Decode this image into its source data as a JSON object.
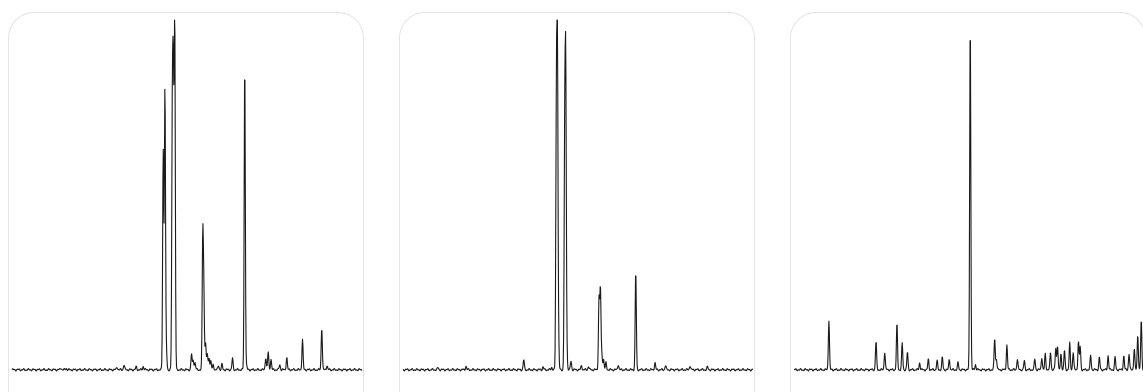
{
  "chart_data": [
    {
      "type": "line",
      "title": "",
      "xlabel": "",
      "ylabel": "",
      "grid": false,
      "legend": "none",
      "line_color": "#1a1a1a",
      "frame_color": "#e3e3e3",
      "xlim": [
        0,
        1
      ],
      "ylim": [
        0,
        1
      ],
      "baseline": 0.012,
      "peaks": [
        [
          0.14,
          0.005
        ],
        [
          0.155,
          0.004
        ],
        [
          0.3,
          0.008
        ],
        [
          0.32,
          0.014
        ],
        [
          0.355,
          0.008
        ],
        [
          0.375,
          0.01
        ],
        [
          0.432,
          0.62
        ],
        [
          0.437,
          0.8
        ],
        [
          0.441,
          0.055
        ],
        [
          0.458,
          0.68
        ],
        [
          0.461,
          0.76
        ],
        [
          0.465,
          0.99
        ],
        [
          0.513,
          0.045
        ],
        [
          0.518,
          0.028
        ],
        [
          0.523,
          0.02
        ],
        [
          0.545,
          0.37
        ],
        [
          0.548,
          0.21
        ],
        [
          0.553,
          0.075
        ],
        [
          0.558,
          0.045
        ],
        [
          0.563,
          0.035
        ],
        [
          0.568,
          0.025
        ],
        [
          0.575,
          0.015
        ],
        [
          0.59,
          0.012
        ],
        [
          0.6,
          0.015
        ],
        [
          0.63,
          0.032
        ],
        [
          0.665,
          0.87
        ],
        [
          0.67,
          0.01
        ],
        [
          0.725,
          0.035
        ],
        [
          0.732,
          0.05
        ],
        [
          0.74,
          0.03
        ],
        [
          0.765,
          0.015
        ],
        [
          0.785,
          0.035
        ],
        [
          0.83,
          0.085
        ],
        [
          0.885,
          0.12
        ],
        [
          0.9,
          0.012
        ]
      ]
    },
    {
      "type": "line",
      "title": "",
      "xlabel": "",
      "ylabel": "",
      "grid": false,
      "legend": "none",
      "line_color": "#1a1a1a",
      "frame_color": "#e3e3e3",
      "xlim": [
        0,
        1
      ],
      "ylim": [
        0,
        1
      ],
      "baseline": 0.012,
      "peaks": [
        [
          0.1,
          0.006
        ],
        [
          0.18,
          0.01
        ],
        [
          0.345,
          0.028
        ],
        [
          0.4,
          0.008
        ],
        [
          0.425,
          0.007
        ],
        [
          0.438,
          0.64
        ],
        [
          0.441,
          0.95
        ],
        [
          0.444,
          0.1
        ],
        [
          0.462,
          0.63
        ],
        [
          0.465,
          0.8
        ],
        [
          0.468,
          0.05
        ],
        [
          0.48,
          0.025
        ],
        [
          0.51,
          0.012
        ],
        [
          0.53,
          0.01
        ],
        [
          0.56,
          0.2
        ],
        [
          0.564,
          0.23
        ],
        [
          0.568,
          0.045
        ],
        [
          0.573,
          0.03
        ],
        [
          0.58,
          0.02
        ],
        [
          0.615,
          0.015
        ],
        [
          0.665,
          0.28
        ],
        [
          0.72,
          0.02
        ],
        [
          0.75,
          0.012
        ],
        [
          0.82,
          0.012
        ],
        [
          0.87,
          0.008
        ]
      ]
    },
    {
      "type": "line",
      "title": "",
      "xlabel": "",
      "ylabel": "",
      "grid": false,
      "legend": "none",
      "line_color": "#1a1a1a",
      "frame_color": "#e3e3e3",
      "xlim": [
        0,
        1
      ],
      "ylim": [
        0,
        1
      ],
      "baseline": 0.012,
      "peaks": [
        [
          0.1,
          0.14
        ],
        [
          0.235,
          0.08
        ],
        [
          0.26,
          0.05
        ],
        [
          0.295,
          0.13
        ],
        [
          0.31,
          0.075
        ],
        [
          0.325,
          0.05
        ],
        [
          0.36,
          0.02
        ],
        [
          0.385,
          0.03
        ],
        [
          0.41,
          0.025
        ],
        [
          0.425,
          0.035
        ],
        [
          0.445,
          0.03
        ],
        [
          0.47,
          0.02
        ],
        [
          0.505,
          0.99
        ],
        [
          0.52,
          0.015
        ],
        [
          0.575,
          0.09
        ],
        [
          0.58,
          0.03
        ],
        [
          0.61,
          0.07
        ],
        [
          0.64,
          0.03
        ],
        [
          0.66,
          0.025
        ],
        [
          0.69,
          0.03
        ],
        [
          0.71,
          0.035
        ],
        [
          0.72,
          0.045
        ],
        [
          0.735,
          0.05
        ],
        [
          0.75,
          0.06
        ],
        [
          0.755,
          0.07
        ],
        [
          0.765,
          0.045
        ],
        [
          0.775,
          0.055
        ],
        [
          0.79,
          0.075
        ],
        [
          0.8,
          0.05
        ],
        [
          0.815,
          0.08
        ],
        [
          0.82,
          0.065
        ],
        [
          0.85,
          0.04
        ],
        [
          0.875,
          0.035
        ],
        [
          0.9,
          0.04
        ],
        [
          0.92,
          0.035
        ],
        [
          0.945,
          0.04
        ],
        [
          0.96,
          0.045
        ],
        [
          0.975,
          0.06
        ],
        [
          0.985,
          0.1
        ],
        [
          0.995,
          0.14
        ]
      ]
    }
  ]
}
